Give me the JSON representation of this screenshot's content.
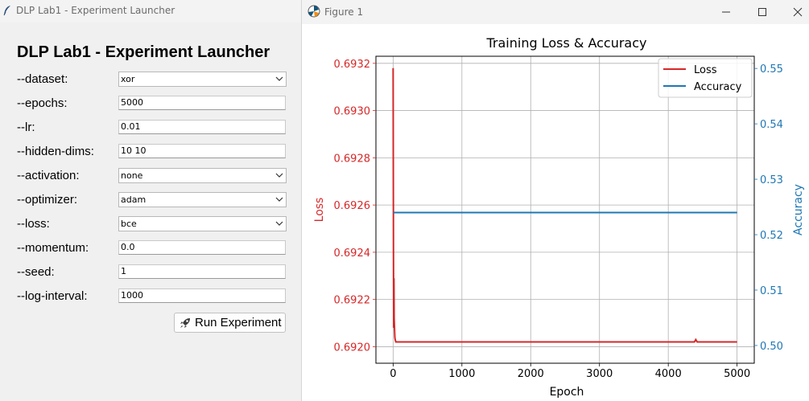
{
  "launcher": {
    "window_title": "DLP Lab1 - Experiment Launcher",
    "heading": "DLP Lab1 - Experiment Launcher",
    "fields": [
      {
        "label": "--dataset:",
        "value": "xor",
        "kind": "select"
      },
      {
        "label": "--epochs:",
        "value": "5000",
        "kind": "input"
      },
      {
        "label": "--lr:",
        "value": "0.01",
        "kind": "input"
      },
      {
        "label": "--hidden-dims:",
        "value": "10 10",
        "kind": "input"
      },
      {
        "label": "--activation:",
        "value": "none",
        "kind": "select"
      },
      {
        "label": "--optimizer:",
        "value": "adam",
        "kind": "select"
      },
      {
        "label": "--loss:",
        "value": "bce",
        "kind": "select"
      },
      {
        "label": "--momentum:",
        "value": "0.0",
        "kind": "input"
      },
      {
        "label": "--seed:",
        "value": "1",
        "kind": "input"
      },
      {
        "label": "--log-interval:",
        "value": "1000",
        "kind": "input"
      }
    ],
    "run_button": {
      "label": "Run Experiment",
      "icon": "rocket-icon"
    }
  },
  "figure_window": {
    "title": "Figure 1",
    "controls": [
      "minimize-icon",
      "maximize-icon",
      "close-icon"
    ]
  },
  "chart_data": {
    "type": "line",
    "title": "Training Loss & Accuracy",
    "xlabel": "Epoch",
    "ylabel_left": "Loss",
    "ylabel_right": "Accuracy",
    "xlim": [
      -250,
      5250
    ],
    "ylim_left": [
      0.69193,
      0.69323
    ],
    "ylim_right": [
      0.4968,
      0.5522
    ],
    "x_ticks": [
      0,
      1000,
      2000,
      3000,
      4000,
      5000
    ],
    "y_ticks_left": [
      0.692,
      0.6922,
      0.6924,
      0.6926,
      0.6928,
      0.693,
      0.6932
    ],
    "y_tick_labels_left": [
      "0.6920",
      "0.6922",
      "0.6924",
      "0.6926",
      "0.6928",
      "0.6930",
      "0.6932"
    ],
    "y_ticks_right": [
      0.5,
      0.51,
      0.52,
      0.53,
      0.54,
      0.55
    ],
    "y_tick_labels_right": [
      "0.50",
      "0.51",
      "0.52",
      "0.53",
      "0.54",
      "0.55"
    ],
    "grid": true,
    "legend": "top-right",
    "colors": {
      "loss": "#d62728",
      "accuracy": "#1f77b4"
    },
    "series": [
      {
        "name": "Loss",
        "axis": "left",
        "x": [
          0,
          5,
          8,
          12,
          15,
          20,
          25,
          30,
          40,
          60,
          100,
          500,
          1000,
          2000,
          3000,
          4000,
          4380,
          4400,
          4420,
          5000
        ],
        "y": [
          0.69318,
          0.6924,
          0.69208,
          0.69229,
          0.69212,
          0.69208,
          0.69204,
          0.69203,
          0.69202,
          0.69202,
          0.69202,
          0.69202,
          0.69202,
          0.69202,
          0.69202,
          0.69202,
          0.69202,
          0.69203,
          0.69202,
          0.69202
        ]
      },
      {
        "name": "Accuracy",
        "axis": "right",
        "x": [
          0,
          5000
        ],
        "y": [
          0.524,
          0.524
        ]
      }
    ]
  }
}
